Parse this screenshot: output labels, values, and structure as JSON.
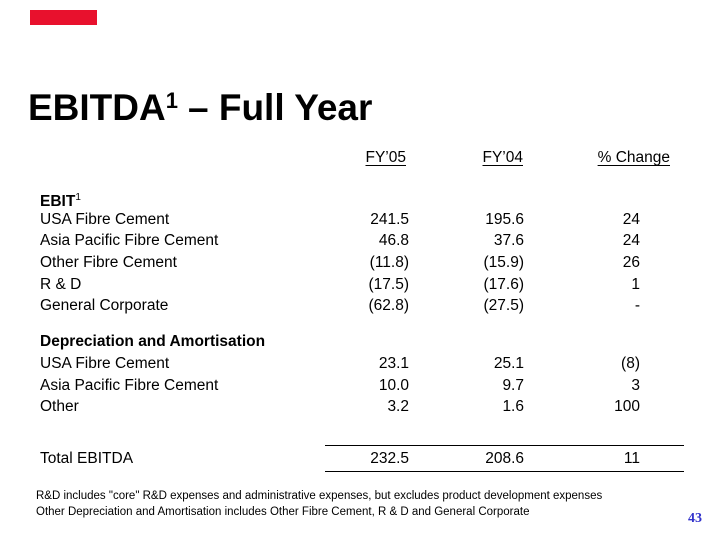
{
  "title": {
    "word": "EBITDA",
    "sup": "1",
    "rest": "– Full Year"
  },
  "table": {
    "columns": [
      "FY’05",
      "FY’04",
      "% Change"
    ],
    "sections": [
      {
        "header": "EBIT",
        "header_sup": "1",
        "rows": [
          {
            "label": "USA Fibre Cement",
            "fy05": "241.5",
            "fy04": "195.6",
            "change": "24"
          },
          {
            "label": "Asia Pacific Fibre Cement",
            "fy05": "46.8",
            "fy04": "37.6",
            "change": "24"
          },
          {
            "label": "Other Fibre Cement",
            "fy05": "(11.8)",
            "fy04": "(15.9)",
            "change": "26"
          },
          {
            "label": "R & D",
            "fy05": "(17.5)",
            "fy04": "(17.6)",
            "change": "1"
          },
          {
            "label": "General Corporate",
            "fy05": "(62.8)",
            "fy04": "(27.5)",
            "change": "-"
          }
        ]
      },
      {
        "header": "Depreciation and Amortisation",
        "rows": [
          {
            "label": "USA Fibre Cement",
            "fy05": "23.1",
            "fy04": "25.1",
            "change": "(8)"
          },
          {
            "label": "Asia Pacific Fibre Cement",
            "fy05": "10.0",
            "fy04": "9.7",
            "change": "3"
          },
          {
            "label": "Other",
            "fy05": "3.2",
            "fy04": "1.6",
            "change": "100"
          }
        ]
      }
    ],
    "total": {
      "label": "Total EBITDA",
      "fy05": "232.5",
      "fy04": "208.6",
      "change": "11"
    }
  },
  "footnotes": [
    "R&D includes \"core\" R&D expenses and administrative expenses, but excludes product development expenses",
    "Other Depreciation and Amortisation includes Other Fibre Cement, R & D and General Corporate"
  ],
  "page_number": "43",
  "colors": {
    "background": "#FFFFFF",
    "text": "#000000",
    "accent_red": "#E8112D",
    "page_number_blue": "#3333CC"
  }
}
